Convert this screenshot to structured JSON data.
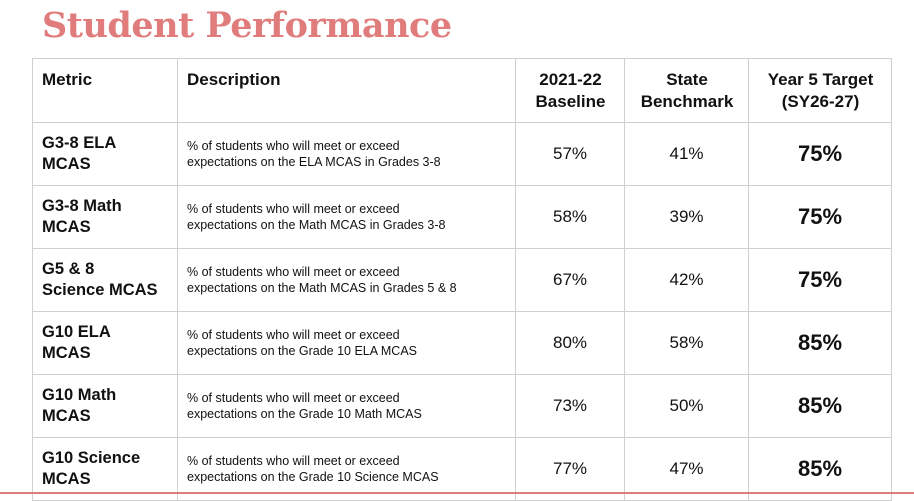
{
  "page": {
    "title": "Student Performance",
    "accent_color": "#e07c7c"
  },
  "table": {
    "headers": {
      "metric": "Metric",
      "description": "Description",
      "baseline_line1": "2021-22",
      "baseline_line2": "Baseline",
      "benchmark_line1": "State",
      "benchmark_line2": "Benchmark",
      "target_line1": "Year 5 Target",
      "target_line2": "(SY26-27)"
    },
    "rows": [
      {
        "metric_line1": "G3-8 ELA",
        "metric_line2": "MCAS",
        "desc_line1": "% of students who will meet or exceed",
        "desc_line2": "expectations on the ELA MCAS in Grades 3-8",
        "baseline": "57%",
        "benchmark": "41%",
        "target": "75%"
      },
      {
        "metric_line1": "G3-8 Math",
        "metric_line2": "MCAS",
        "desc_line1": "% of students who will meet or exceed",
        "desc_line2": "expectations on the Math MCAS in Grades 3-8",
        "baseline": "58%",
        "benchmark": "39%",
        "target": "75%"
      },
      {
        "metric_line1": "G5 & 8",
        "metric_line2": "Science MCAS",
        "desc_line1": "% of students who will meet or exceed",
        "desc_line2": "expectations on the Math MCAS in Grades 5 & 8",
        "baseline": "67%",
        "benchmark": "42%",
        "target": "75%"
      },
      {
        "metric_line1": "G10 ELA",
        "metric_line2": "MCAS",
        "desc_line1": "% of students who will meet or exceed",
        "desc_line2": "expectations on the Grade 10 ELA MCAS",
        "baseline": "80%",
        "benchmark": "58%",
        "target": "85%"
      },
      {
        "metric_line1": "G10 Math",
        "metric_line2": "MCAS",
        "desc_line1": "% of students who will meet or exceed",
        "desc_line2": "expectations on the Grade 10 Math MCAS",
        "baseline": "73%",
        "benchmark": "50%",
        "target": "85%"
      },
      {
        "metric_line1": "G10 Science",
        "metric_line2": "MCAS",
        "desc_line1": "% of students who will meet or exceed",
        "desc_line2": "expectations on the Grade 10 Science MCAS",
        "baseline": "77%",
        "benchmark": "47%",
        "target": "85%"
      }
    ]
  }
}
